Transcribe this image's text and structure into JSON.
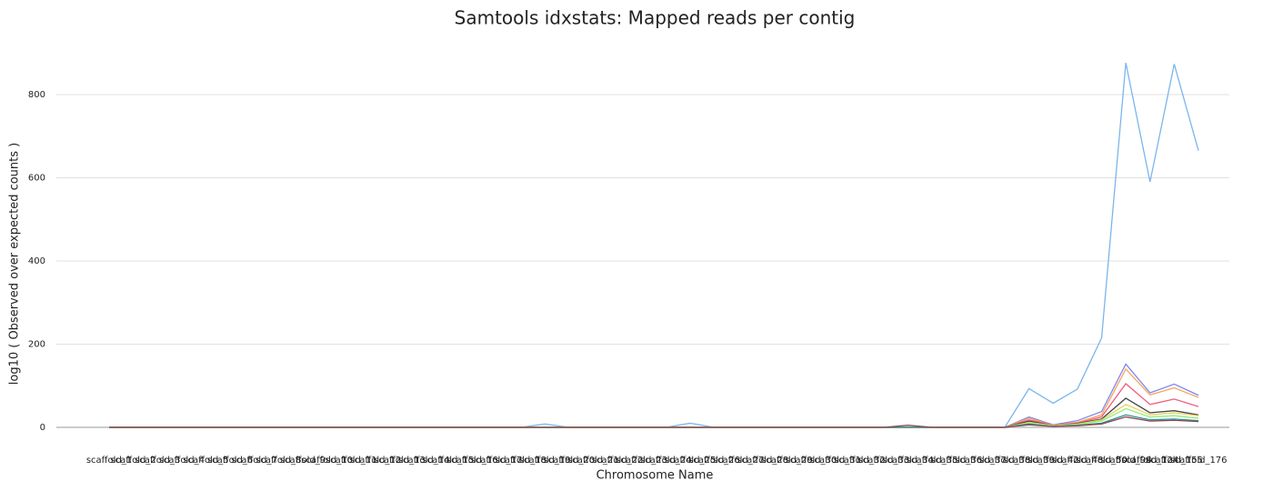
{
  "chart_data": {
    "type": "line",
    "title": "Samtools idxstats: Mapped reads per contig",
    "x_label": "Chromosome Name",
    "y_label": "log10 ( Observed over expected counts )",
    "categories": [
      "scaffold_1",
      "scaffold_2",
      "scaffold_3",
      "scaffold_4",
      "scaffold_5",
      "scaffold_6",
      "scaffold_7",
      "scaffold_8",
      "scaffold_9",
      "scaffold_10",
      "scaffold_11",
      "scaffold_12",
      "scaffold_13",
      "scaffold_14",
      "scaffold_15",
      "scaffold_16",
      "scaffold_17",
      "scaffold_18",
      "scaffold_19",
      "scaffold_20",
      "scaffold_21",
      "scaffold_22",
      "scaffold_23",
      "scaffold_24",
      "scaffold_25",
      "scaffold_26",
      "scaffold_27",
      "scaffold_28",
      "scaffold_29",
      "scaffold_30",
      "scaffold_31",
      "scaffold_32",
      "scaffold_33",
      "scaffold_34",
      "scaffold_35",
      "scaffold_36",
      "scaffold_37",
      "scaffold_38",
      "scaffold_39",
      "scaffold_42",
      "scaffold_48",
      "scaffold_50",
      "scaffold_98",
      "scaffold_124",
      "scaffold_155",
      "scaffold_176"
    ],
    "series": [
      {
        "color": "#7cb5ec",
        "values": [
          0,
          0,
          0,
          0,
          0,
          0,
          0,
          0,
          0,
          0,
          0,
          0,
          0,
          0,
          0,
          0,
          0,
          0,
          8,
          0,
          0,
          0,
          0,
          0,
          10,
          0,
          0,
          0,
          0,
          0,
          0,
          0,
          0,
          0,
          0,
          0,
          0,
          0,
          93,
          58,
          92,
          215,
          876,
          590,
          873,
          665
        ]
      },
      {
        "color": "#8085e9",
        "values": [
          0,
          0,
          0,
          0,
          0,
          0,
          0,
          0,
          0,
          0,
          0,
          0,
          0,
          0,
          0,
          0,
          0,
          0,
          0,
          0,
          0,
          0,
          0,
          0,
          0,
          0,
          0,
          0,
          0,
          0,
          0,
          0,
          0,
          0,
          0,
          0,
          0,
          0,
          25,
          6,
          16,
          38,
          152,
          83,
          104,
          77
        ]
      },
      {
        "color": "#f7a35c",
        "values": [
          0,
          0,
          0,
          0,
          0,
          0,
          0,
          0,
          0,
          0,
          0,
          0,
          0,
          0,
          0,
          0,
          0,
          0,
          0,
          0,
          0,
          0,
          0,
          0,
          0,
          0,
          0,
          0,
          0,
          0,
          0,
          0,
          0,
          0,
          0,
          0,
          0,
          0,
          22,
          5,
          12,
          30,
          140,
          78,
          95,
          72
        ]
      },
      {
        "color": "#f15c80",
        "values": [
          0,
          0,
          0,
          0,
          0,
          0,
          0,
          0,
          0,
          0,
          0,
          0,
          0,
          0,
          0,
          0,
          0,
          0,
          0,
          0,
          0,
          0,
          0,
          0,
          0,
          0,
          0,
          0,
          0,
          0,
          0,
          0,
          0,
          0,
          0,
          0,
          0,
          0,
          18,
          5,
          10,
          25,
          105,
          55,
          68,
          50
        ]
      },
      {
        "color": "#434348",
        "values": [
          0,
          0,
          0,
          0,
          0,
          0,
          0,
          0,
          0,
          0,
          0,
          0,
          0,
          0,
          0,
          0,
          0,
          0,
          0,
          0,
          0,
          0,
          0,
          0,
          0,
          0,
          0,
          0,
          0,
          0,
          0,
          0,
          0,
          0,
          0,
          0,
          0,
          0,
          15,
          4,
          9,
          20,
          70,
          35,
          40,
          30
        ]
      },
      {
        "color": "#e4d354",
        "values": [
          0,
          0,
          0,
          0,
          0,
          0,
          0,
          0,
          0,
          0,
          0,
          0,
          0,
          0,
          0,
          0,
          0,
          0,
          0,
          0,
          0,
          0,
          0,
          0,
          0,
          0,
          0,
          0,
          0,
          0,
          0,
          0,
          0,
          0,
          0,
          0,
          0,
          0,
          12,
          4,
          8,
          18,
          55,
          30,
          35,
          28
        ]
      },
      {
        "color": "#90ed7d",
        "values": [
          0,
          0,
          0,
          0,
          0,
          0,
          0,
          0,
          0,
          0,
          0,
          0,
          0,
          0,
          0,
          0,
          0,
          0,
          0,
          0,
          0,
          0,
          0,
          0,
          0,
          0,
          0,
          0,
          0,
          0,
          0,
          0,
          0,
          0,
          0,
          0,
          0,
          0,
          10,
          3,
          7,
          15,
          45,
          25,
          28,
          22
        ]
      },
      {
        "color": "#2b908f",
        "values": [
          0,
          0,
          0,
          0,
          0,
          0,
          0,
          0,
          0,
          0,
          0,
          0,
          0,
          0,
          0,
          0,
          0,
          0,
          0,
          0,
          0,
          0,
          0,
          0,
          0,
          0,
          0,
          0,
          0,
          0,
          0,
          0,
          0,
          0,
          0,
          0,
          0,
          0,
          8,
          2,
          5,
          10,
          30,
          18,
          20,
          16
        ]
      },
      {
        "color": "#8d4653",
        "values": [
          0,
          0,
          0,
          0,
          0,
          0,
          0,
          0,
          0,
          0,
          0,
          0,
          0,
          0,
          0,
          0,
          0,
          0,
          0,
          0,
          0,
          0,
          0,
          0,
          0,
          0,
          0,
          0,
          0,
          0,
          0,
          0,
          0,
          5,
          0,
          0,
          0,
          0,
          6,
          2,
          4,
          8,
          25,
          15,
          17,
          14
        ]
      }
    ],
    "ylim": [
      0,
      900
    ],
    "yticks": [
      0,
      200,
      400,
      600,
      800
    ],
    "grid": true
  }
}
